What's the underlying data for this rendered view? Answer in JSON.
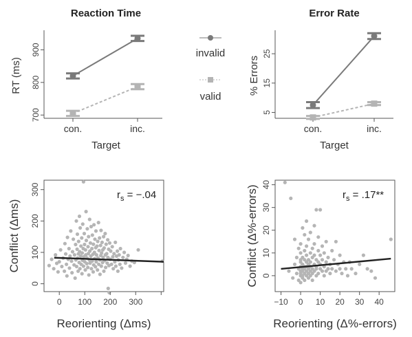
{
  "chart_data": [
    {
      "type": "line",
      "title": "Reaction Time",
      "xlabel": "Target",
      "ylabel": "RT (ms)",
      "categories": [
        "con.",
        "inc."
      ],
      "ylim": [
        690,
        960
      ],
      "yticks": [
        700,
        800,
        900
      ],
      "series": [
        {
          "name": "invalid",
          "values": [
            820,
            935
          ],
          "errors": [
            8,
            8
          ],
          "color": "#7a7a7a",
          "marker": "circle",
          "dash": "solid"
        },
        {
          "name": "valid",
          "values": [
            705,
            787
          ],
          "errors": [
            8,
            8
          ],
          "color": "#b4b4b4",
          "marker": "square",
          "dash": "dashed"
        }
      ]
    },
    {
      "type": "line",
      "title": "Error Rate",
      "xlabel": "Target",
      "ylabel": "% Errors",
      "categories": [
        "con.",
        "inc."
      ],
      "ylim": [
        3,
        33
      ],
      "yticks": [
        5,
        15,
        25
      ],
      "series": [
        {
          "name": "invalid",
          "values": [
            7.5,
            31
          ],
          "errors": [
            1,
            1
          ],
          "color": "#7a7a7a",
          "marker": "circle",
          "dash": "solid"
        },
        {
          "name": "valid",
          "values": [
            3.3,
            8
          ],
          "errors": [
            0.5,
            0.5
          ],
          "color": "#b4b4b4",
          "marker": "square",
          "dash": "dashed"
        }
      ]
    },
    {
      "type": "scatter",
      "title": "",
      "xlabel": "Reorienting (Δms)",
      "ylabel": "Conflict (Δms)",
      "annotation": {
        "prefix": "r",
        "sub": "s",
        "text": " = −.04"
      },
      "xlim": [
        -60,
        410
      ],
      "ylim": [
        -25,
        330
      ],
      "xticks": [
        0,
        100,
        200,
        300,
        400
      ],
      "xtick_labels": [
        "0",
        "100",
        "200",
        "300",
        ""
      ],
      "yticks": [
        0,
        100,
        200,
        300
      ],
      "fit_line": [
        [
          -20,
          83
        ],
        [
          410,
          70
        ]
      ],
      "point_color": "#b5b5b5",
      "points": [
        [
          95,
          325
        ],
        [
          -40,
          58
        ],
        [
          -30,
          78
        ],
        [
          -22,
          48
        ],
        [
          -15,
          92
        ],
        [
          -10,
          65
        ],
        [
          -5,
          38
        ],
        [
          0,
          70
        ],
        [
          5,
          108
        ],
        [
          10,
          55
        ],
        [
          15,
          82
        ],
        [
          20,
          40
        ],
        [
          22,
          128
        ],
        [
          25,
          95
        ],
        [
          28,
          62
        ],
        [
          30,
          25
        ],
        [
          32,
          148
        ],
        [
          35,
          78
        ],
        [
          38,
          112
        ],
        [
          40,
          50
        ],
        [
          42,
          88
        ],
        [
          45,
          168
        ],
        [
          48,
          72
        ],
        [
          50,
          35
        ],
        [
          52,
          102
        ],
        [
          55,
          142
        ],
        [
          58,
          60
        ],
        [
          60,
          92
        ],
        [
          62,
          18
        ],
        [
          64,
          125
        ],
        [
          65,
          76
        ],
        [
          67,
          200
        ],
        [
          68,
          55
        ],
        [
          70,
          110
        ],
        [
          71,
          158
        ],
        [
          72,
          82
        ],
        [
          74,
          40
        ],
        [
          75,
          95
        ],
        [
          76,
          135
        ],
        [
          78,
          68
        ],
        [
          79,
          215
        ],
        [
          80,
          102
        ],
        [
          81,
          48
        ],
        [
          82,
          178
        ],
        [
          84,
          88
        ],
        [
          85,
          120
        ],
        [
          86,
          62
        ],
        [
          88,
          146
        ],
        [
          89,
          32
        ],
        [
          90,
          98
        ],
        [
          91,
          75
        ],
        [
          92,
          190
        ],
        [
          94,
          112
        ],
        [
          95,
          56
        ],
        [
          96,
          86
        ],
        [
          98,
          160
        ],
        [
          99,
          125
        ],
        [
          100,
          70
        ],
        [
          102,
          44
        ],
        [
          103,
          108
        ],
        [
          104,
          92
        ],
        [
          105,
          230
        ],
        [
          106,
          138
        ],
        [
          108,
          64
        ],
        [
          109,
          82
        ],
        [
          110,
          175
        ],
        [
          112,
          52
        ],
        [
          113,
          118
        ],
        [
          114,
          96
        ],
        [
          115,
          150
        ],
        [
          116,
          28
        ],
        [
          118,
          76
        ],
        [
          119,
          205
        ],
        [
          120,
          104
        ],
        [
          121,
          66
        ],
        [
          122,
          130
        ],
        [
          124,
          88
        ],
        [
          125,
          182
        ],
        [
          126,
          48
        ],
        [
          128,
          112
        ],
        [
          129,
          72
        ],
        [
          130,
          155
        ],
        [
          132,
          94
        ],
        [
          133,
          38
        ],
        [
          134,
          126
        ],
        [
          135,
          60
        ],
        [
          136,
          188
        ],
        [
          138,
          100
        ],
        [
          139,
          80
        ],
        [
          140,
          142
        ],
        [
          142,
          54
        ],
        [
          143,
          115
        ],
        [
          144,
          168
        ],
        [
          145,
          70
        ],
        [
          146,
          92
        ],
        [
          148,
          120
        ],
        [
          150,
          44
        ],
        [
          151,
          135
        ],
        [
          152,
          82
        ],
        [
          154,
          195
        ],
        [
          155,
          62
        ],
        [
          156,
          106
        ],
        [
          158,
          146
        ],
        [
          159,
          76
        ],
        [
          160,
          30
        ],
        [
          162,
          122
        ],
        [
          163,
          90
        ],
        [
          164,
          170
        ],
        [
          165,
          56
        ],
        [
          166,
          98
        ],
        [
          168,
          132
        ],
        [
          170,
          68
        ],
        [
          171,
          108
        ],
        [
          172,
          84
        ],
        [
          174,
          150
        ],
        [
          175,
          40
        ],
        [
          176,
          114
        ],
        [
          178,
          74
        ],
        [
          180,
          160
        ],
        [
          181,
          92
        ],
        [
          182,
          52
        ],
        [
          184,
          126
        ],
        [
          186,
          96
        ],
        [
          188,
          66
        ],
        [
          190,
          140
        ],
        [
          191,
          84
        ],
        [
          192,
          -15
        ],
        [
          194,
          110
        ],
        [
          195,
          58
        ],
        [
          196,
          -28
        ],
        [
          198,
          130
        ],
        [
          200,
          78
        ],
        [
          202,
          104
        ],
        [
          205,
          62
        ],
        [
          208,
          118
        ],
        [
          210,
          86
        ],
        [
          212,
          48
        ],
        [
          215,
          96
        ],
        [
          218,
          70
        ],
        [
          220,
          132
        ],
        [
          222,
          56
        ],
        [
          225,
          88
        ],
        [
          228,
          104
        ],
        [
          230,
          40
        ],
        [
          232,
          76
        ],
        [
          235,
          92
        ],
        [
          238,
          62
        ],
        [
          240,
          112
        ],
        [
          245,
          50
        ],
        [
          250,
          84
        ],
        [
          255,
          100
        ],
        [
          260,
          66
        ],
        [
          265,
          78
        ],
        [
          270,
          90
        ],
        [
          278,
          56
        ],
        [
          285,
          72
        ],
        [
          295,
          68
        ],
        [
          310,
          108
        ],
        [
          405,
          72
        ]
      ]
    },
    {
      "type": "scatter",
      "title": "",
      "xlabel": "Reorienting (Δ%-errors)",
      "ylabel": "Conflict (Δ%-errors)",
      "annotation": {
        "prefix": "r",
        "sub": "s",
        "text": " = .17**"
      },
      "xlim": [
        -13,
        48
      ],
      "ylim": [
        -7,
        42
      ],
      "xticks": [
        -10,
        0,
        10,
        20,
        30,
        40
      ],
      "xtick_labels": [
        "−10",
        "0",
        "10",
        "20",
        "30",
        "40"
      ],
      "yticks": [
        0,
        10,
        20,
        30,
        40
      ],
      "fit_line": [
        [
          -10,
          3
        ],
        [
          46,
          7.5
        ]
      ],
      "point_color": "#b5b5b5",
      "points": [
        [
          -8,
          41
        ],
        [
          -6,
          2
        ],
        [
          -5,
          34
        ],
        [
          -4,
          -1
        ],
        [
          -3,
          5
        ],
        [
          -3,
          16
        ],
        [
          -2,
          1
        ],
        [
          -2,
          8
        ],
        [
          -1,
          3
        ],
        [
          -1,
          -2
        ],
        [
          -1,
          12
        ],
        [
          0,
          0
        ],
        [
          0,
          4
        ],
        [
          0,
          7
        ],
        [
          0,
          2
        ],
        [
          0,
          10
        ],
        [
          0,
          -3
        ],
        [
          0,
          1
        ],
        [
          0,
          6
        ],
        [
          0,
          14
        ],
        [
          1,
          3
        ],
        [
          1,
          0
        ],
        [
          1,
          8
        ],
        [
          1,
          21
        ],
        [
          1,
          2
        ],
        [
          1,
          5
        ],
        [
          1,
          -1
        ],
        [
          2,
          4
        ],
        [
          2,
          11
        ],
        [
          2,
          1
        ],
        [
          2,
          7
        ],
        [
          2,
          18
        ],
        [
          2,
          3
        ],
        [
          2,
          -2
        ],
        [
          3,
          6
        ],
        [
          3,
          2
        ],
        [
          3,
          9
        ],
        [
          3,
          0
        ],
        [
          3,
          13
        ],
        [
          3,
          4
        ],
        [
          3,
          24
        ],
        [
          4,
          1
        ],
        [
          4,
          7
        ],
        [
          4,
          3
        ],
        [
          4,
          16
        ],
        [
          4,
          -1
        ],
        [
          4,
          5
        ],
        [
          5,
          2
        ],
        [
          5,
          10
        ],
        [
          5,
          6
        ],
        [
          5,
          0
        ],
        [
          5,
          19
        ],
        [
          5,
          4
        ],
        [
          6,
          8
        ],
        [
          6,
          1
        ],
        [
          6,
          12
        ],
        [
          6,
          3
        ],
        [
          6,
          -2
        ],
        [
          7,
          5
        ],
        [
          7,
          9
        ],
        [
          7,
          2
        ],
        [
          7,
          22
        ],
        [
          7,
          14
        ],
        [
          8,
          4
        ],
        [
          8,
          0
        ],
        [
          8,
          7
        ],
        [
          8,
          29
        ],
        [
          8,
          3
        ],
        [
          9,
          6
        ],
        [
          9,
          11
        ],
        [
          9,
          1
        ],
        [
          9,
          17
        ],
        [
          10,
          5
        ],
        [
          10,
          3
        ],
        [
          10,
          9
        ],
        [
          10,
          29
        ],
        [
          11,
          2
        ],
        [
          11,
          7
        ],
        [
          11,
          13
        ],
        [
          12,
          4
        ],
        [
          12,
          0
        ],
        [
          12,
          10
        ],
        [
          13,
          6
        ],
        [
          13,
          2
        ],
        [
          13,
          15
        ],
        [
          14,
          3
        ],
        [
          14,
          8
        ],
        [
          15,
          1
        ],
        [
          15,
          5
        ],
        [
          16,
          11
        ],
        [
          16,
          3
        ],
        [
          17,
          7
        ],
        [
          18,
          2
        ],
        [
          18,
          15
        ],
        [
          19,
          5
        ],
        [
          20,
          3
        ],
        [
          20,
          9
        ],
        [
          21,
          1
        ],
        [
          22,
          6
        ],
        [
          23,
          3
        ],
        [
          24,
          0
        ],
        [
          25,
          6
        ],
        [
          26,
          3
        ],
        [
          28,
          1
        ],
        [
          30,
          5
        ],
        [
          32,
          9
        ],
        [
          34,
          3
        ],
        [
          36,
          2
        ],
        [
          38,
          -1
        ],
        [
          46,
          16
        ]
      ]
    }
  ]
}
